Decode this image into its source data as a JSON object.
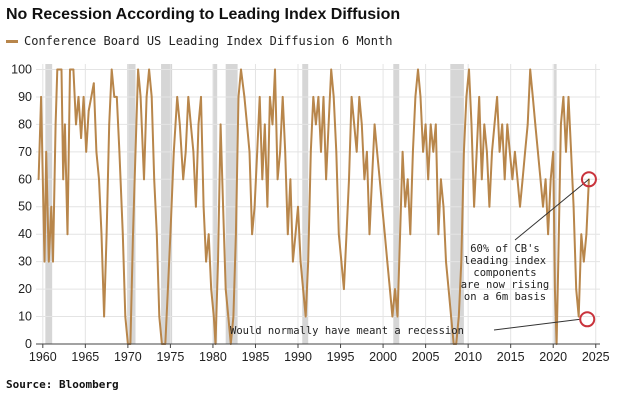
{
  "chart_data": {
    "type": "line",
    "title": "No Recession According to Leading Index Diffusion",
    "legend": "top-left",
    "series": [
      {
        "name": "Conference Board US Leading Index Diffusion 6 Month",
        "color": "#b8864b",
        "points": [
          [
            1959.5,
            60
          ],
          [
            1959.8,
            90
          ],
          [
            1960.2,
            30
          ],
          [
            1960.4,
            70
          ],
          [
            1960.7,
            30
          ],
          [
            1961.0,
            50
          ],
          [
            1961.2,
            30
          ],
          [
            1961.5,
            80
          ],
          [
            1961.7,
            100
          ],
          [
            1962.2,
            100
          ],
          [
            1962.4,
            60
          ],
          [
            1962.6,
            80
          ],
          [
            1962.9,
            40
          ],
          [
            1963.2,
            100
          ],
          [
            1963.6,
            100
          ],
          [
            1963.9,
            80
          ],
          [
            1964.2,
            90
          ],
          [
            1964.5,
            75
          ],
          [
            1964.8,
            90
          ],
          [
            1965.1,
            70
          ],
          [
            1965.4,
            85
          ],
          [
            1965.7,
            90
          ],
          [
            1966.0,
            95
          ],
          [
            1966.3,
            70
          ],
          [
            1966.6,
            60
          ],
          [
            1966.9,
            40
          ],
          [
            1967.2,
            10
          ],
          [
            1967.5,
            40
          ],
          [
            1967.8,
            80
          ],
          [
            1968.1,
            100
          ],
          [
            1968.4,
            90
          ],
          [
            1968.7,
            90
          ],
          [
            1969.0,
            70
          ],
          [
            1969.4,
            40
          ],
          [
            1969.7,
            10
          ],
          [
            1970.0,
            0
          ],
          [
            1970.3,
            0
          ],
          [
            1970.6,
            40
          ],
          [
            1970.9,
            70
          ],
          [
            1971.2,
            100
          ],
          [
            1971.5,
            90
          ],
          [
            1971.9,
            60
          ],
          [
            1972.2,
            90
          ],
          [
            1972.5,
            100
          ],
          [
            1972.8,
            90
          ],
          [
            1973.1,
            60
          ],
          [
            1973.4,
            40
          ],
          [
            1973.7,
            10
          ],
          [
            1974.0,
            0
          ],
          [
            1974.4,
            0
          ],
          [
            1974.7,
            20
          ],
          [
            1975.0,
            40
          ],
          [
            1975.4,
            70
          ],
          [
            1975.8,
            90
          ],
          [
            1976.1,
            80
          ],
          [
            1976.5,
            60
          ],
          [
            1976.8,
            70
          ],
          [
            1977.1,
            90
          ],
          [
            1977.4,
            80
          ],
          [
            1977.7,
            70
          ],
          [
            1978.0,
            50
          ],
          [
            1978.3,
            80
          ],
          [
            1978.6,
            90
          ],
          [
            1978.9,
            50
          ],
          [
            1979.2,
            30
          ],
          [
            1979.5,
            40
          ],
          [
            1979.8,
            20
          ],
          [
            1980.1,
            10
          ],
          [
            1980.3,
            0
          ],
          [
            1980.6,
            30
          ],
          [
            1980.9,
            80
          ],
          [
            1981.2,
            50
          ],
          [
            1981.5,
            20
          ],
          [
            1981.8,
            10
          ],
          [
            1982.1,
            0
          ],
          [
            1982.4,
            10
          ],
          [
            1982.7,
            40
          ],
          [
            1983.0,
            90
          ],
          [
            1983.3,
            100
          ],
          [
            1983.7,
            90
          ],
          [
            1984.0,
            80
          ],
          [
            1984.3,
            70
          ],
          [
            1984.6,
            40
          ],
          [
            1984.9,
            50
          ],
          [
            1985.2,
            70
          ],
          [
            1985.5,
            90
          ],
          [
            1985.8,
            60
          ],
          [
            1986.1,
            80
          ],
          [
            1986.4,
            50
          ],
          [
            1986.7,
            90
          ],
          [
            1987.0,
            80
          ],
          [
            1987.3,
            100
          ],
          [
            1987.6,
            60
          ],
          [
            1987.9,
            70
          ],
          [
            1988.2,
            90
          ],
          [
            1988.5,
            70
          ],
          [
            1988.8,
            40
          ],
          [
            1989.1,
            60
          ],
          [
            1989.4,
            30
          ],
          [
            1989.7,
            40
          ],
          [
            1990.0,
            50
          ],
          [
            1990.3,
            30
          ],
          [
            1990.6,
            20
          ],
          [
            1990.9,
            10
          ],
          [
            1991.2,
            30
          ],
          [
            1991.5,
            70
          ],
          [
            1991.8,
            90
          ],
          [
            1992.1,
            80
          ],
          [
            1992.4,
            90
          ],
          [
            1992.7,
            70
          ],
          [
            1993.0,
            90
          ],
          [
            1993.3,
            60
          ],
          [
            1993.6,
            80
          ],
          [
            1993.9,
            100
          ],
          [
            1994.2,
            90
          ],
          [
            1994.5,
            70
          ],
          [
            1994.8,
            40
          ],
          [
            1995.1,
            30
          ],
          [
            1995.4,
            20
          ],
          [
            1995.7,
            40
          ],
          [
            1996.0,
            60
          ],
          [
            1996.3,
            90
          ],
          [
            1996.6,
            80
          ],
          [
            1996.9,
            70
          ],
          [
            1997.2,
            90
          ],
          [
            1997.5,
            80
          ],
          [
            1997.8,
            60
          ],
          [
            1998.1,
            70
          ],
          [
            1998.4,
            40
          ],
          [
            1998.7,
            60
          ],
          [
            1999.0,
            80
          ],
          [
            1999.3,
            70
          ],
          [
            1999.6,
            60
          ],
          [
            1999.9,
            50
          ],
          [
            2000.2,
            40
          ],
          [
            2000.5,
            30
          ],
          [
            2000.8,
            20
          ],
          [
            2001.1,
            10
          ],
          [
            2001.4,
            20
          ],
          [
            2001.7,
            10
          ],
          [
            2002.0,
            40
          ],
          [
            2002.3,
            70
          ],
          [
            2002.6,
            50
          ],
          [
            2002.9,
            60
          ],
          [
            2003.2,
            40
          ],
          [
            2003.5,
            70
          ],
          [
            2003.8,
            90
          ],
          [
            2004.1,
            100
          ],
          [
            2004.4,
            90
          ],
          [
            2004.7,
            70
          ],
          [
            2005.0,
            80
          ],
          [
            2005.3,
            60
          ],
          [
            2005.6,
            80
          ],
          [
            2005.9,
            70
          ],
          [
            2006.2,
            80
          ],
          [
            2006.5,
            40
          ],
          [
            2006.8,
            60
          ],
          [
            2007.1,
            50
          ],
          [
            2007.4,
            30
          ],
          [
            2007.7,
            20
          ],
          [
            2008.0,
            10
          ],
          [
            2008.3,
            0
          ],
          [
            2008.6,
            0
          ],
          [
            2008.9,
            10
          ],
          [
            2009.2,
            30
          ],
          [
            2009.5,
            70
          ],
          [
            2009.8,
            90
          ],
          [
            2010.1,
            100
          ],
          [
            2010.4,
            80
          ],
          [
            2010.7,
            50
          ],
          [
            2011.0,
            70
          ],
          [
            2011.3,
            90
          ],
          [
            2011.6,
            60
          ],
          [
            2011.9,
            80
          ],
          [
            2012.2,
            70
          ],
          [
            2012.5,
            50
          ],
          [
            2012.8,
            70
          ],
          [
            2013.1,
            80
          ],
          [
            2013.4,
            90
          ],
          [
            2013.7,
            70
          ],
          [
            2014.0,
            80
          ],
          [
            2014.3,
            60
          ],
          [
            2014.6,
            80
          ],
          [
            2014.9,
            70
          ],
          [
            2015.2,
            60
          ],
          [
            2015.5,
            70
          ],
          [
            2015.8,
            60
          ],
          [
            2016.1,
            50
          ],
          [
            2016.4,
            60
          ],
          [
            2016.7,
            70
          ],
          [
            2017.0,
            80
          ],
          [
            2017.3,
            100
          ],
          [
            2017.6,
            90
          ],
          [
            2017.9,
            80
          ],
          [
            2018.2,
            70
          ],
          [
            2018.5,
            60
          ],
          [
            2018.8,
            50
          ],
          [
            2019.1,
            60
          ],
          [
            2019.4,
            40
          ],
          [
            2019.7,
            60
          ],
          [
            2020.0,
            70
          ],
          [
            2020.2,
            20
          ],
          [
            2020.4,
            0
          ],
          [
            2020.6,
            30
          ],
          [
            2020.9,
            80
          ],
          [
            2021.2,
            90
          ],
          [
            2021.5,
            70
          ],
          [
            2021.8,
            90
          ],
          [
            2022.1,
            70
          ],
          [
            2022.4,
            50
          ],
          [
            2022.7,
            20
          ],
          [
            2023.0,
            10
          ],
          [
            2023.3,
            40
          ],
          [
            2023.6,
            30
          ],
          [
            2023.9,
            40
          ],
          [
            2024.2,
            60
          ]
        ]
      }
    ],
    "recession_shading": [
      [
        1960.3,
        1961.1
      ],
      [
        1969.9,
        1970.9
      ],
      [
        1973.9,
        1975.2
      ],
      [
        1980.0,
        1980.5
      ],
      [
        1981.5,
        1982.9
      ],
      [
        1990.5,
        1991.2
      ],
      [
        2001.2,
        2001.9
      ],
      [
        2007.9,
        2009.5
      ],
      [
        2020.1,
        2020.4
      ]
    ],
    "x_ticks": [
      1960,
      1965,
      1970,
      1975,
      1980,
      1985,
      1990,
      1995,
      2000,
      2005,
      2010,
      2015,
      2020,
      2025
    ],
    "x_tick_labels": [
      "1960",
      "1965",
      "1970",
      "1975",
      "1980",
      "1985",
      "1990",
      "1995",
      "2000",
      "2005",
      "2010",
      "2015",
      "2020",
      "2025"
    ],
    "y_ticks": [
      0,
      10,
      20,
      30,
      40,
      50,
      60,
      70,
      80,
      90,
      100
    ],
    "y_tick_labels": [
      "0",
      "10",
      "20",
      "30",
      "40",
      "50",
      "60",
      "70",
      "80",
      "90",
      "100"
    ],
    "xlim": [
      1959.2,
      2025.5
    ],
    "ylim": [
      0,
      102
    ],
    "grid": true,
    "annotations": [
      {
        "lines": [
          "60% of CB's",
          "leading index",
          "components",
          "are now rising",
          "on a 6m basis"
        ],
        "target": [
          2024.2,
          60
        ]
      },
      {
        "lines": [
          "Would normally have meant a recession"
        ],
        "target": [
          2024.0,
          9
        ]
      }
    ]
  },
  "source": "Source: Bloomberg"
}
